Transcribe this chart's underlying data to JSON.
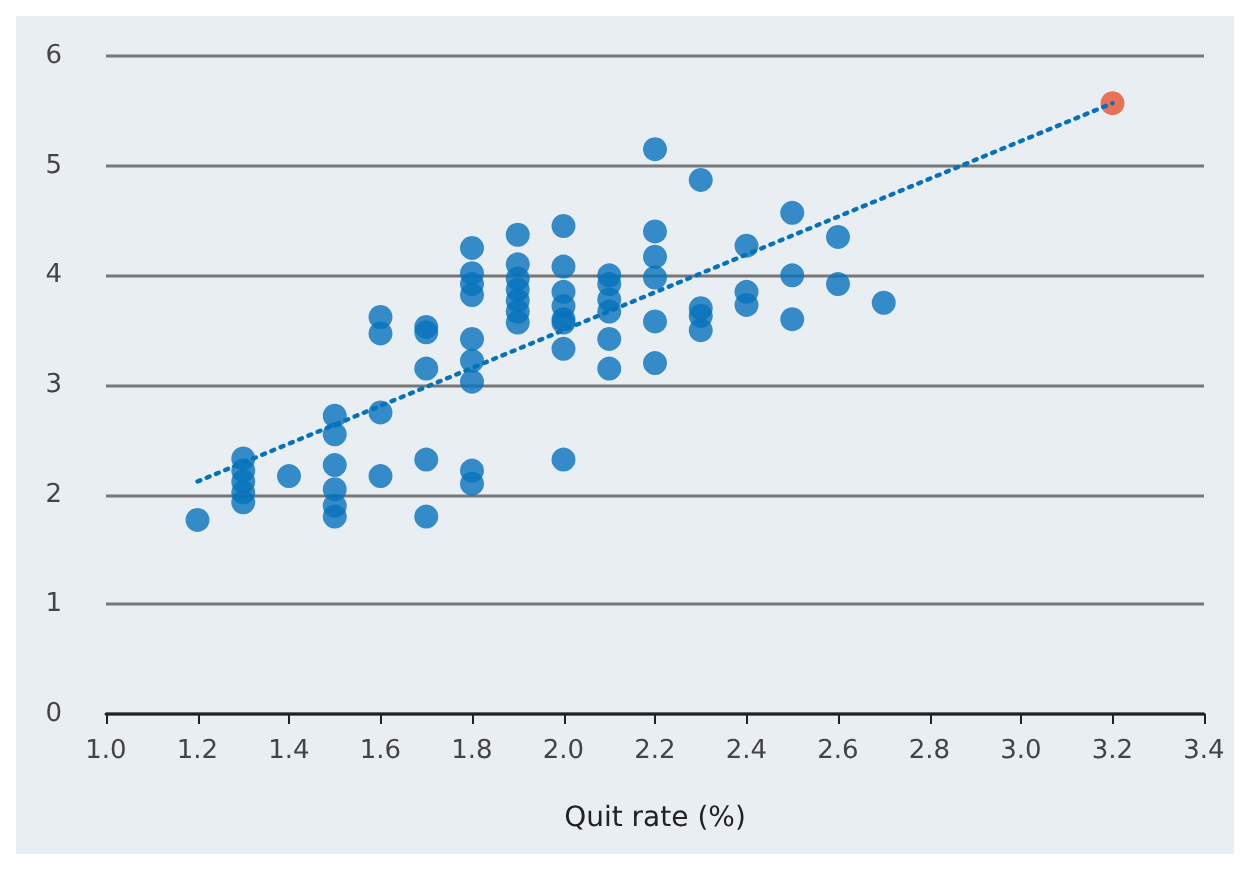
{
  "chart_data": {
    "type": "scatter",
    "xlabel": "Quit rate (%)",
    "xlim": [
      1.0,
      3.4
    ],
    "xticks": [
      {
        "value": 1.0,
        "label": "1.0"
      },
      {
        "value": 1.2,
        "label": "1.2"
      },
      {
        "value": 1.4,
        "label": "1.4"
      },
      {
        "value": 1.6,
        "label": "1.6"
      },
      {
        "value": 1.8,
        "label": "1.8"
      },
      {
        "value": 2.0,
        "label": "2.0"
      },
      {
        "value": 2.2,
        "label": "2.2"
      },
      {
        "value": 2.4,
        "label": "2.4"
      },
      {
        "value": 2.6,
        "label": "2.6"
      },
      {
        "value": 2.8,
        "label": "2.8"
      },
      {
        "value": 3.0,
        "label": "3.0"
      },
      {
        "value": 3.2,
        "label": "3.2"
      },
      {
        "value": 3.4,
        "label": "3.4"
      }
    ],
    "ylim": [
      0,
      6
    ],
    "yticks": [
      0,
      1,
      2,
      3,
      4,
      5,
      6
    ],
    "grid": "y",
    "marker": "circle",
    "series": [
      {
        "color": "#0672bb",
        "x": [
          1.2,
          1.3,
          1.3,
          1.3,
          1.3,
          1.3,
          1.4,
          1.5,
          1.5,
          1.5,
          1.5,
          1.5,
          1.5,
          1.6,
          1.6,
          1.6,
          1.6,
          1.7,
          1.7,
          1.7,
          1.7,
          1.7,
          1.8,
          1.8,
          1.8,
          1.8,
          1.8,
          1.8,
          1.8,
          1.8,
          1.8,
          1.9,
          1.9,
          1.9,
          1.9,
          1.9,
          1.9,
          1.9,
          2.0,
          2.0,
          2.0,
          2.0,
          2.0,
          2.0,
          2.0,
          2.0,
          2.1,
          2.1,
          2.1,
          2.1,
          2.1,
          2.1,
          2.2,
          2.2,
          2.2,
          2.2,
          2.2,
          2.2,
          2.3,
          2.3,
          2.3,
          2.3,
          2.4,
          2.4,
          2.4,
          2.5,
          2.5,
          2.5,
          2.6,
          2.6,
          2.7
        ],
        "values": [
          1.77,
          2.33,
          2.22,
          2.12,
          2.02,
          1.93,
          2.17,
          2.72,
          2.55,
          2.27,
          2.05,
          1.9,
          1.8,
          3.62,
          3.47,
          2.75,
          2.17,
          3.53,
          3.48,
          3.15,
          2.32,
          1.8,
          4.25,
          4.02,
          3.92,
          3.82,
          3.42,
          3.22,
          3.03,
          2.22,
          2.1,
          4.37,
          4.1,
          3.97,
          3.87,
          3.77,
          3.67,
          3.57,
          4.45,
          4.08,
          3.85,
          3.72,
          3.6,
          3.57,
          3.33,
          2.32,
          4.0,
          3.92,
          3.78,
          3.67,
          3.42,
          3.15,
          5.15,
          4.4,
          4.17,
          3.98,
          3.58,
          3.2,
          4.87,
          3.7,
          3.63,
          3.5,
          4.27,
          3.85,
          3.73,
          4.57,
          4.0,
          3.6,
          4.35,
          3.92,
          3.75
        ]
      },
      {
        "color": "#e8522e",
        "x": [
          3.2
        ],
        "values": [
          5.57
        ]
      },
      {
        "type": "line",
        "color": "#0672bb",
        "line_style": "dotted",
        "marker": "none",
        "x": [
          1.2,
          3.2
        ],
        "values": [
          2.12,
          5.57
        ]
      }
    ]
  }
}
